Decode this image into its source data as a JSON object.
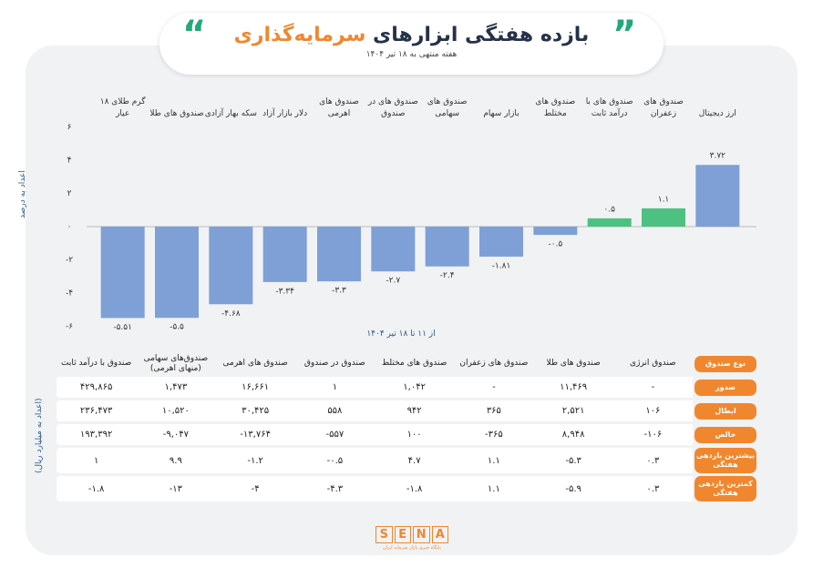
{
  "chart_data": {
    "type": "bar",
    "title": "بازده هفتگی ابزارهای",
    "title_highlight": "سرمایه‌گذاری",
    "subtitle": "هفته منتهی به ۱۸ تیر ۱۴۰۴",
    "y_label": "اعداد به درصد",
    "x_label": "از ۱۱ تا ۱۸ تیر ۱۴۰۴",
    "categories": [
      "ارز دیجیتال",
      "صندوق های زعفران",
      "صندوق های با درآمد ثابت",
      "صندوق های مختلط",
      "بازار سهام",
      "صندوق های سهامی",
      "صندوق های در صندوق",
      "صندوق های اهرمی",
      "دلار بازار آزاد",
      "سکه بهار آزادی",
      "صندوق های طلا",
      "گرم طلای ۱۸ عیار"
    ],
    "values": [
      3.72,
      1.1,
      0.5,
      -0.5,
      -1.81,
      -2.4,
      -2.7,
      -3.3,
      -3.34,
      -4.68,
      -5.5,
      -5.51
    ],
    "value_labels": [
      "۳.۷۲",
      "۱.۱",
      "۰.۵",
      "-۰.۵",
      "-۱.۸۱",
      "-۲.۴",
      "-۲.۷",
      "-۳.۳",
      "-۳.۳۴",
      "-۴.۶۸",
      "-۵.۵",
      "-۵.۵۱"
    ],
    "colors": [
      "#7ea0d6",
      "#4cc182",
      "#4cc182",
      "#7ea0d6",
      "#7ea0d6",
      "#7ea0d6",
      "#7ea0d6",
      "#7ea0d6",
      "#7ea0d6",
      "#7ea0d6",
      "#7ea0d6",
      "#7ea0d6"
    ],
    "ylim": [
      -6.2,
      6.2
    ],
    "yticks": [
      {
        "value": 6,
        "label": "۶"
      },
      {
        "value": 4,
        "label": "۴"
      },
      {
        "value": 2,
        "label": "۲"
      },
      {
        "value": 0,
        "label": "۰"
      },
      {
        "value": -2,
        "label": "-۲"
      },
      {
        "value": -4,
        "label": "-۴"
      },
      {
        "value": -6,
        "label": "-۶"
      }
    ],
    "grid": false
  },
  "table": {
    "unit": "(اعداد به میلیارد ریال)",
    "header": [
      "نوع صندوق",
      "صندوق انرژی",
      "صندوق های طلا",
      "صندوق های زعفران",
      "صندوق های مختلط",
      "صندوق در صندوق",
      "صندوق های اهرمی",
      "صندوق‌های سهامی (منهای اهرمی)",
      "صندوق با درآمد ثابت"
    ],
    "rows": [
      [
        "صدور",
        "-",
        "۱۱,۴۶۹",
        "-",
        "۱,۰۴۲",
        "۱",
        "۱۶,۶۶۱",
        "۱,۴۷۳",
        "۴۲۹,۸۶۵"
      ],
      [
        "ابطال",
        "۱۰۶",
        "۲,۵۲۱",
        "۳۶۵",
        "۹۴۲",
        "۵۵۸",
        "۳۰,۴۲۵",
        "۱۰,۵۲۰",
        "۲۳۶,۴۷۳"
      ],
      [
        "خالص",
        "-۱۰۶",
        "۸,۹۴۸",
        "-۳۶۵",
        "۱۰۰",
        "-۵۵۷",
        "-۱۳,۷۶۴",
        "-۹,۰۴۷",
        "۱۹۳,۳۹۲"
      ],
      [
        "بیشترین بازدهی هفتگی",
        "۰.۳",
        "-۵.۳",
        "۱.۱",
        "۴.۷",
        "-۰.۵",
        "-۱.۲",
        "۹.۹",
        "۱"
      ],
      [
        "کمترین بازدهی هفتگی",
        "۰.۳",
        "-۵.۹",
        "۱.۱",
        "-۱.۸",
        "-۴.۳",
        "-۴",
        "-۱۳",
        "-۱.۸"
      ]
    ]
  },
  "logo": {
    "name": "SENA",
    "tagline": "پایگاه خبری بازار سرمایه ایران"
  }
}
